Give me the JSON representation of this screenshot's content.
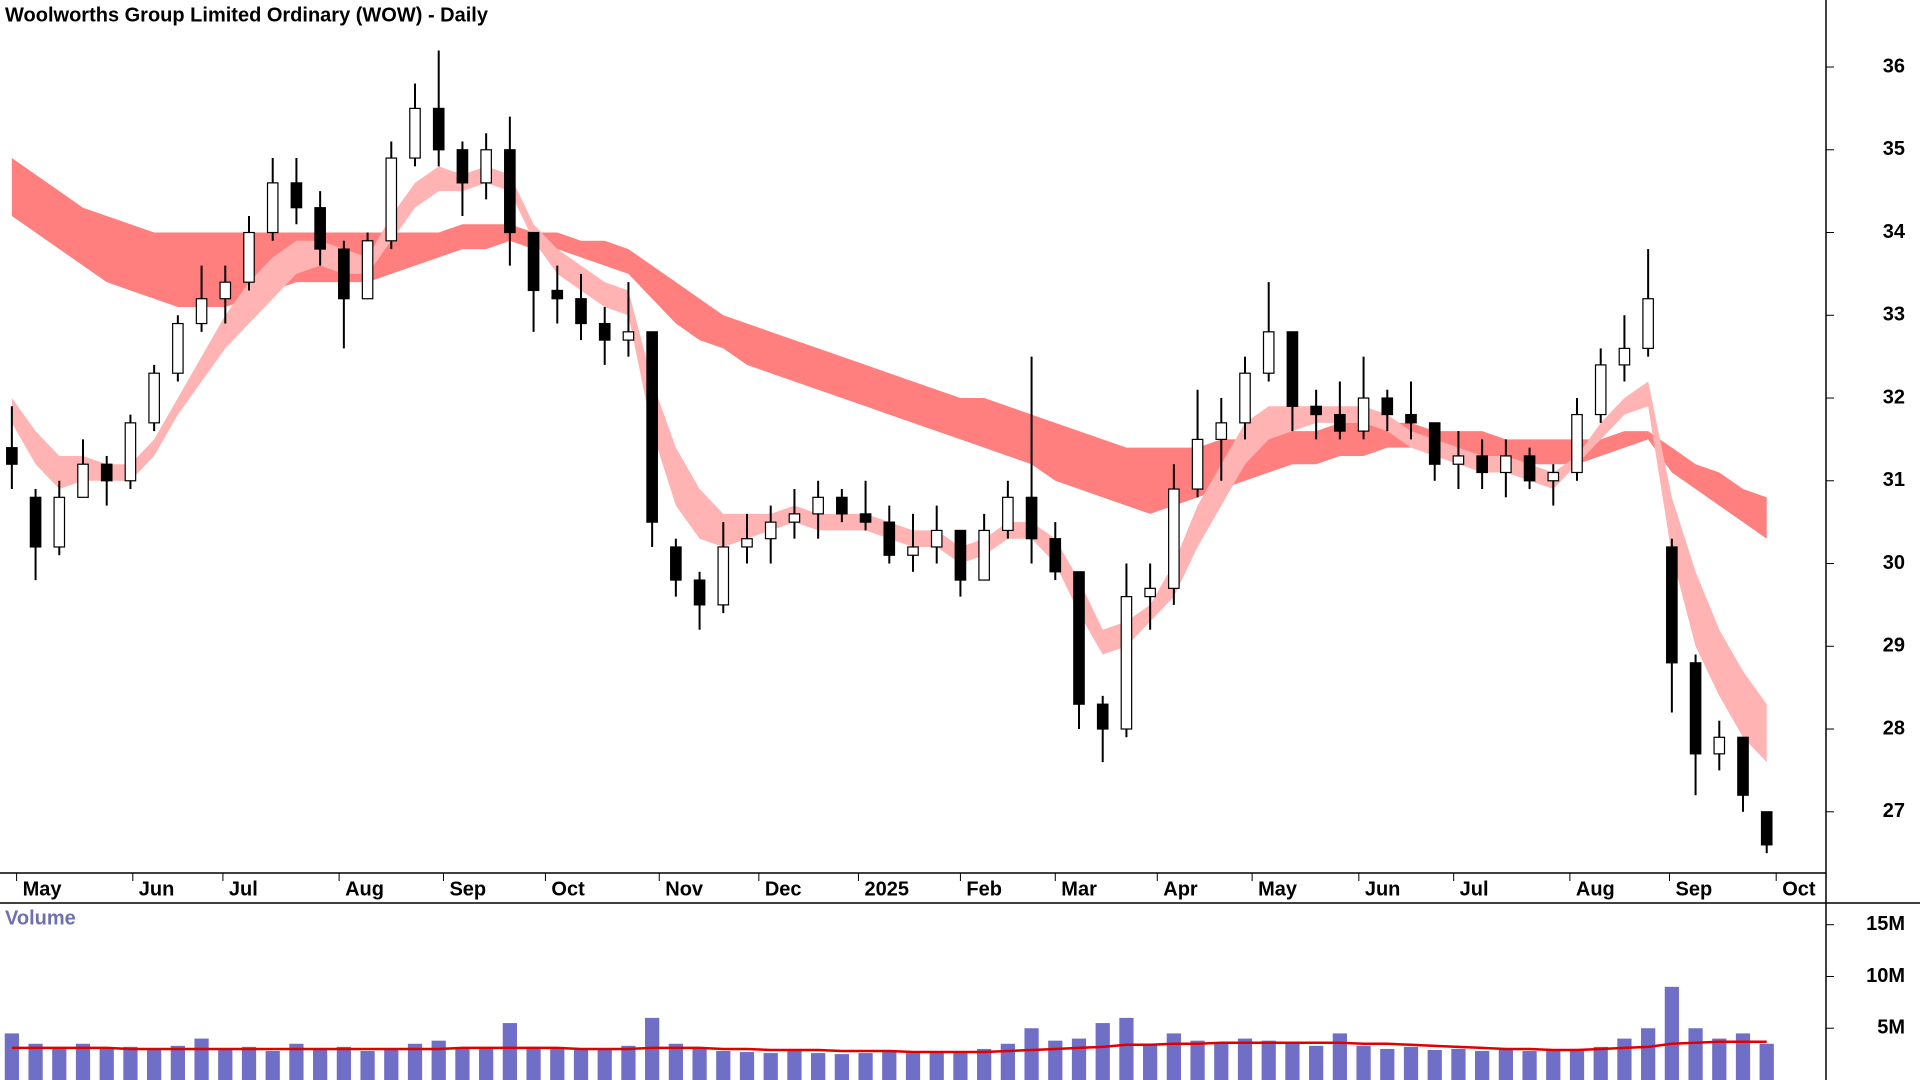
{
  "chart_data": [
    {
      "type": "candlestick",
      "title": "Woolworths Group Limited Ordinary (WOW) - Daily",
      "xlim": [
        -0.5,
        76.5
      ],
      "xticks": [
        {
          "value": 0.2,
          "label": "May"
        },
        {
          "value": 5.1,
          "label": "Jun"
        },
        {
          "value": 8.9,
          "label": "Jul"
        },
        {
          "value": 13.8,
          "label": "Aug"
        },
        {
          "value": 18.2,
          "label": "Sep"
        },
        {
          "value": 22.5,
          "label": "Oct"
        },
        {
          "value": 27.3,
          "label": "Nov"
        },
        {
          "value": 31.5,
          "label": "Dec"
        },
        {
          "value": 35.7,
          "label": "2025"
        },
        {
          "value": 40.0,
          "label": "Feb"
        },
        {
          "value": 44.0,
          "label": "Mar"
        },
        {
          "value": 48.3,
          "label": "Apr"
        },
        {
          "value": 52.3,
          "label": "May"
        },
        {
          "value": 56.8,
          "label": "Jun"
        },
        {
          "value": 60.8,
          "label": "Jul"
        },
        {
          "value": 65.7,
          "label": "Aug"
        },
        {
          "value": 69.9,
          "label": "Sep"
        },
        {
          "value": 74.4,
          "label": "Oct"
        }
      ],
      "ylim": [
        26.26,
        36.81
      ],
      "yticks": [
        27,
        28,
        29,
        30,
        31,
        32,
        33,
        34,
        35,
        36
      ],
      "open": [
        31.4,
        30.8,
        30.2,
        30.8,
        31.2,
        31.0,
        31.7,
        32.3,
        32.9,
        33.2,
        33.4,
        34.0,
        34.6,
        34.3,
        33.8,
        33.2,
        33.9,
        34.9,
        35.5,
        35.0,
        34.6,
        35.0,
        34.0,
        33.3,
        33.2,
        32.9,
        32.7,
        32.8,
        30.2,
        29.8,
        29.5,
        30.2,
        30.3,
        30.5,
        30.6,
        30.8,
        30.6,
        30.5,
        30.1,
        30.2,
        30.4,
        29.8,
        30.4,
        30.8,
        30.3,
        29.9,
        28.3,
        28.0,
        29.6,
        29.7,
        30.9,
        31.5,
        31.7,
        32.3,
        32.8,
        31.9,
        31.8,
        31.6,
        32.0,
        31.8,
        31.7,
        31.2,
        31.3,
        31.1,
        31.3,
        31.0,
        31.1,
        31.8,
        32.4,
        32.6,
        30.2,
        28.8,
        27.7,
        27.9,
        27.0
      ],
      "high": [
        31.9,
        30.9,
        31.0,
        31.5,
        31.3,
        31.8,
        32.4,
        33.0,
        33.6,
        33.6,
        34.2,
        34.9,
        34.9,
        34.5,
        33.9,
        34.0,
        35.1,
        35.8,
        36.2,
        35.1,
        35.2,
        35.4,
        34.0,
        33.6,
        33.5,
        33.1,
        33.4,
        32.8,
        30.3,
        29.9,
        30.5,
        30.6,
        30.7,
        30.9,
        31.0,
        30.9,
        31.0,
        30.7,
        30.6,
        30.7,
        30.4,
        30.6,
        31.0,
        32.5,
        30.5,
        29.9,
        28.4,
        30.0,
        30.0,
        31.2,
        32.1,
        32.0,
        32.5,
        33.4,
        32.8,
        32.1,
        32.2,
        32.5,
        32.1,
        32.2,
        31.7,
        31.6,
        31.5,
        31.5,
        31.4,
        31.2,
        32.0,
        32.6,
        33.0,
        33.8,
        30.3,
        28.9,
        28.1,
        27.9,
        27.0
      ],
      "low": [
        30.9,
        29.8,
        30.1,
        30.8,
        30.7,
        30.9,
        31.6,
        32.2,
        32.8,
        32.9,
        33.3,
        33.9,
        34.1,
        33.6,
        32.6,
        33.2,
        33.8,
        34.8,
        34.8,
        34.2,
        34.4,
        33.6,
        32.8,
        32.9,
        32.7,
        32.4,
        32.5,
        30.2,
        29.6,
        29.2,
        29.4,
        30.0,
        30.0,
        30.3,
        30.3,
        30.5,
        30.4,
        30.0,
        29.9,
        30.0,
        29.6,
        29.8,
        30.3,
        30.0,
        29.8,
        28.0,
        27.6,
        27.9,
        29.2,
        29.5,
        30.8,
        31.0,
        31.5,
        32.2,
        31.6,
        31.5,
        31.5,
        31.5,
        31.6,
        31.5,
        31.0,
        30.9,
        30.9,
        30.8,
        30.9,
        30.7,
        31.0,
        31.7,
        32.2,
        32.5,
        28.2,
        27.2,
        27.5,
        27.0,
        26.5
      ],
      "close": [
        31.2,
        30.2,
        30.8,
        31.2,
        31.0,
        31.7,
        32.3,
        32.9,
        33.2,
        33.4,
        34.0,
        34.6,
        34.3,
        33.8,
        33.2,
        33.9,
        34.9,
        35.5,
        35.0,
        34.6,
        35.0,
        34.0,
        33.3,
        33.2,
        32.9,
        32.7,
        32.8,
        30.5,
        29.8,
        29.5,
        30.2,
        30.3,
        30.5,
        30.6,
        30.8,
        30.6,
        30.5,
        30.1,
        30.2,
        30.4,
        29.8,
        30.4,
        30.8,
        30.3,
        29.9,
        28.3,
        28.0,
        29.6,
        29.7,
        30.9,
        31.5,
        31.7,
        32.3,
        32.8,
        31.9,
        31.8,
        31.6,
        32.0,
        31.8,
        31.7,
        31.2,
        31.3,
        31.1,
        31.3,
        31.0,
        31.1,
        31.8,
        32.4,
        32.6,
        33.2,
        28.8,
        27.7,
        27.9,
        27.2,
        26.6
      ],
      "bands": [
        {
          "color": "#ff7f7f",
          "upper": [
            34.9,
            34.7,
            34.5,
            34.3,
            34.2,
            34.1,
            34.0,
            34.0,
            34.0,
            34.0,
            34.0,
            34.0,
            34.0,
            34.0,
            34.0,
            34.0,
            34.0,
            34.0,
            34.0,
            34.1,
            34.1,
            34.1,
            34.0,
            34.0,
            33.9,
            33.9,
            33.8,
            33.6,
            33.4,
            33.2,
            33.0,
            32.9,
            32.8,
            32.7,
            32.6,
            32.5,
            32.4,
            32.3,
            32.2,
            32.1,
            32.0,
            32.0,
            31.9,
            31.8,
            31.7,
            31.6,
            31.5,
            31.4,
            31.4,
            31.4,
            31.4,
            31.5,
            31.5,
            31.6,
            31.6,
            31.6,
            31.7,
            31.7,
            31.7,
            31.7,
            31.6,
            31.6,
            31.6,
            31.5,
            31.5,
            31.5,
            31.5,
            31.5,
            31.6,
            31.6,
            31.4,
            31.2,
            31.1,
            30.9,
            30.8
          ],
          "lower": [
            34.2,
            34.0,
            33.8,
            33.6,
            33.4,
            33.3,
            33.2,
            33.1,
            33.1,
            33.1,
            33.2,
            33.3,
            33.4,
            33.4,
            33.4,
            33.4,
            33.5,
            33.6,
            33.7,
            33.8,
            33.8,
            33.9,
            33.8,
            33.8,
            33.7,
            33.6,
            33.5,
            33.2,
            32.9,
            32.7,
            32.6,
            32.4,
            32.3,
            32.2,
            32.1,
            32.0,
            31.9,
            31.8,
            31.7,
            31.6,
            31.5,
            31.4,
            31.3,
            31.2,
            31.0,
            30.9,
            30.8,
            30.7,
            30.6,
            30.7,
            30.8,
            30.9,
            31.0,
            31.1,
            31.2,
            31.2,
            31.3,
            31.3,
            31.4,
            31.4,
            31.4,
            31.3,
            31.3,
            31.2,
            31.2,
            31.2,
            31.2,
            31.3,
            31.4,
            31.5,
            31.1,
            30.9,
            30.7,
            30.5,
            30.3
          ]
        },
        {
          "color": "#ffb3b3",
          "upper": [
            32.0,
            31.6,
            31.3,
            31.3,
            31.2,
            31.2,
            31.5,
            32.0,
            32.5,
            33.0,
            33.4,
            33.7,
            33.9,
            33.9,
            33.8,
            33.7,
            34.2,
            34.6,
            34.8,
            34.7,
            34.8,
            34.7,
            34.1,
            33.8,
            33.6,
            33.4,
            33.3,
            32.2,
            31.4,
            30.9,
            30.6,
            30.6,
            30.6,
            30.7,
            30.6,
            30.6,
            30.6,
            30.5,
            30.4,
            30.4,
            30.2,
            30.3,
            30.5,
            30.5,
            30.3,
            29.8,
            29.2,
            29.3,
            29.5,
            30.0,
            30.7,
            31.2,
            31.7,
            31.9,
            31.9,
            31.9,
            31.9,
            31.9,
            31.8,
            31.6,
            31.5,
            31.4,
            31.3,
            31.3,
            31.2,
            31.1,
            31.3,
            31.7,
            32.0,
            32.2,
            30.8,
            29.9,
            29.2,
            28.7,
            28.3
          ],
          "lower": [
            31.7,
            31.2,
            30.9,
            31.0,
            31.0,
            31.0,
            31.3,
            31.8,
            32.2,
            32.6,
            32.9,
            33.2,
            33.5,
            33.6,
            33.5,
            33.5,
            33.9,
            34.3,
            34.5,
            34.5,
            34.6,
            34.5,
            33.9,
            33.5,
            33.3,
            33.1,
            33.0,
            31.6,
            30.7,
            30.3,
            30.2,
            30.3,
            30.4,
            30.5,
            30.4,
            30.4,
            30.4,
            30.3,
            30.2,
            30.2,
            30.0,
            30.1,
            30.3,
            30.3,
            30.0,
            29.4,
            28.9,
            29.0,
            29.3,
            29.6,
            30.2,
            30.7,
            31.2,
            31.5,
            31.6,
            31.7,
            31.7,
            31.7,
            31.6,
            31.4,
            31.3,
            31.2,
            31.1,
            31.1,
            31.0,
            30.9,
            31.2,
            31.5,
            31.8,
            31.9,
            30.1,
            29.0,
            28.4,
            27.9,
            27.6
          ]
        }
      ]
    },
    {
      "type": "volume",
      "title": "Volume",
      "color": "#6f6fc8",
      "ylim": [
        0,
        17000000
      ],
      "yticks": [
        {
          "value": 5000000,
          "label": "5M"
        },
        {
          "value": 10000000,
          "label": "10M"
        },
        {
          "value": 15000000,
          "label": "15M"
        }
      ],
      "values": [
        4500000,
        3500000,
        3000000,
        3500000,
        3000000,
        3200000,
        3000000,
        3300000,
        4000000,
        3000000,
        3200000,
        2800000,
        3500000,
        3000000,
        3200000,
        2800000,
        3000000,
        3500000,
        3800000,
        3000000,
        3000000,
        5500000,
        3200000,
        3000000,
        2900000,
        3000000,
        3300000,
        6000000,
        3500000,
        3000000,
        2800000,
        2700000,
        2600000,
        2800000,
        2600000,
        2500000,
        2600000,
        2700000,
        2600000,
        2800000,
        2700000,
        3000000,
        3500000,
        5000000,
        3800000,
        4000000,
        5500000,
        6000000,
        3500000,
        4500000,
        3800000,
        3600000,
        4000000,
        3800000,
        3500000,
        3300000,
        4500000,
        3300000,
        3000000,
        3200000,
        2900000,
        3000000,
        2800000,
        2900000,
        2800000,
        2900000,
        3000000,
        3200000,
        4000000,
        5000000,
        9000000,
        5000000,
        4000000,
        4500000,
        3500000
      ],
      "average": {
        "color": "#e00000",
        "values": [
          3100000,
          3100000,
          3100000,
          3100000,
          3100000,
          3000000,
          3000000,
          3000000,
          3000000,
          3000000,
          3000000,
          3000000,
          3000000,
          3000000,
          3000000,
          3000000,
          3000000,
          3000000,
          3000000,
          3100000,
          3100000,
          3100000,
          3100000,
          3100000,
          3000000,
          3000000,
          3000000,
          3100000,
          3100000,
          3100000,
          3000000,
          3000000,
          2900000,
          2900000,
          2900000,
          2800000,
          2800000,
          2800000,
          2700000,
          2700000,
          2700000,
          2700000,
          2800000,
          2900000,
          3000000,
          3100000,
          3200000,
          3400000,
          3400000,
          3500000,
          3500000,
          3600000,
          3600000,
          3600000,
          3600000,
          3600000,
          3600000,
          3500000,
          3500000,
          3400000,
          3300000,
          3200000,
          3100000,
          3000000,
          3000000,
          2900000,
          2900000,
          3000000,
          3100000,
          3200000,
          3500000,
          3600000,
          3700000,
          3700000,
          3700000
        ]
      }
    }
  ]
}
